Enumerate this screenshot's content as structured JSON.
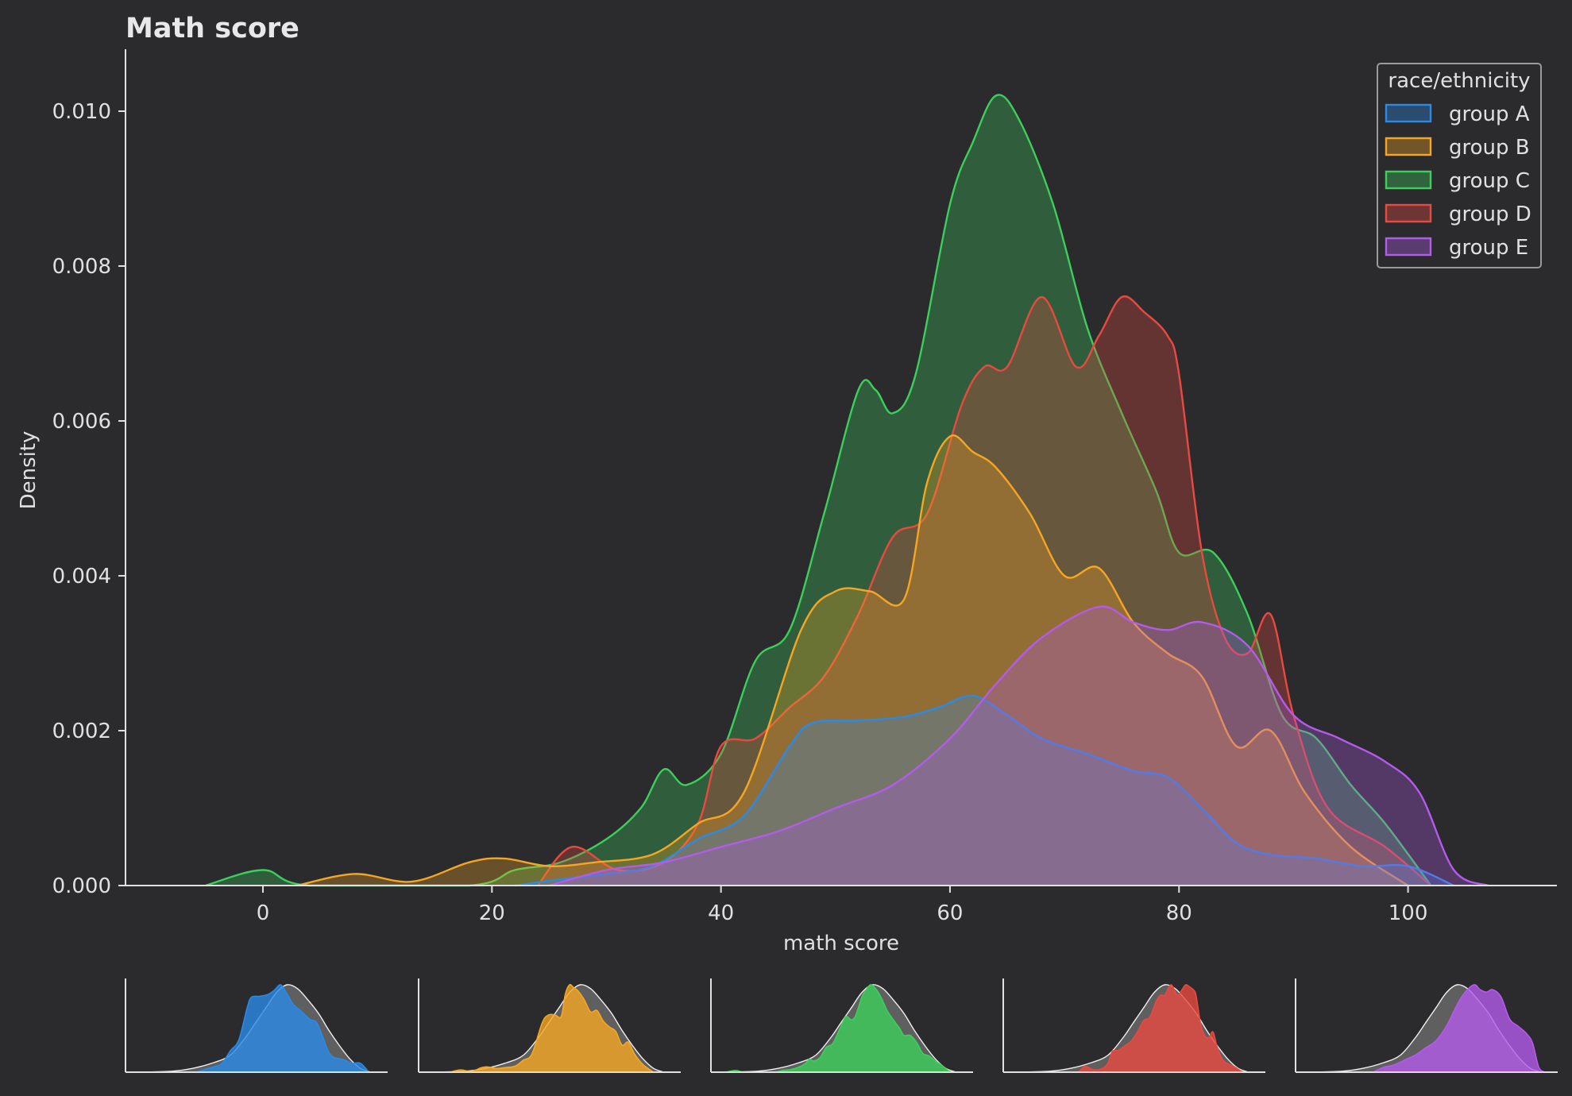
{
  "chart_data": {
    "type": "area",
    "title": "Math score",
    "xlabel": "math score",
    "ylabel": "Density",
    "xlim": [
      -12,
      113
    ],
    "ylim": [
      0,
      0.0108
    ],
    "x_ticks": [
      0,
      20,
      40,
      60,
      80,
      100
    ],
    "x_tick_labels": [
      "0",
      "20",
      "40",
      "60",
      "80",
      "100"
    ],
    "y_ticks": [
      0,
      0.002,
      0.004,
      0.006,
      0.008,
      0.01
    ],
    "y_tick_labels": [
      "0.000",
      "0.002",
      "0.004",
      "0.006",
      "0.008",
      "0.010"
    ],
    "grid": false,
    "legend": {
      "title": "race/ethnicity",
      "placement": "top-right"
    },
    "colors": {
      "background": "#2b2b2e",
      "axis": "#e0e0e0",
      "group A": "#2a8ae6",
      "group B": "#f5a623",
      "group C": "#3ccf5b",
      "group D": "#e84a40",
      "group E": "#b35bea",
      "overall": "#c8c8c8"
    },
    "series": [
      {
        "name": "group A",
        "color": "#2a8ae6",
        "x": [
          22,
          26,
          30,
          34,
          38,
          42,
          46,
          48,
          52,
          56,
          59,
          62,
          65,
          68,
          72,
          76,
          79,
          82,
          85,
          88,
          92,
          96,
          100,
          104
        ],
        "y": [
          0,
          8e-05,
          0.00015,
          0.00025,
          0.0006,
          0.0009,
          0.0018,
          0.0021,
          0.00213,
          0.00218,
          0.0023,
          0.00245,
          0.0022,
          0.0019,
          0.0017,
          0.00148,
          0.0014,
          0.001,
          0.00055,
          0.0004,
          0.00035,
          0.00025,
          0.00025,
          0
        ]
      },
      {
        "name": "group B",
        "color": "#f5a623",
        "x": [
          3,
          8,
          13,
          18,
          21,
          25,
          29,
          34,
          38,
          42,
          47,
          50,
          53,
          56,
          58,
          60,
          62,
          64,
          67,
          70,
          73,
          76,
          79,
          82,
          85,
          88,
          91,
          95,
          100
        ],
        "y": [
          0,
          0.00015,
          5e-05,
          0.0003,
          0.00035,
          0.00025,
          0.0003,
          0.0004,
          0.0008,
          0.0012,
          0.0033,
          0.0038,
          0.0038,
          0.0037,
          0.0052,
          0.0058,
          0.0056,
          0.0054,
          0.0048,
          0.004,
          0.0041,
          0.0034,
          0.003,
          0.0027,
          0.0018,
          0.002,
          0.0012,
          0.0005,
          0
        ]
      },
      {
        "name": "group C",
        "color": "#3ccf5b",
        "x": [
          -5,
          0,
          4,
          18,
          22,
          26,
          30,
          33,
          35,
          37,
          40,
          43,
          46,
          49,
          52,
          53.5,
          55,
          57,
          60,
          62,
          64,
          66,
          69,
          72,
          75,
          78,
          80,
          83,
          86,
          89,
          92,
          95,
          98,
          102
        ],
        "y": [
          0,
          0.0002,
          0,
          0,
          0.0002,
          0.0003,
          0.0006,
          0.001,
          0.0015,
          0.0013,
          0.0017,
          0.0029,
          0.0033,
          0.0048,
          0.0064,
          0.0064,
          0.0061,
          0.0066,
          0.0088,
          0.0096,
          0.0102,
          0.0099,
          0.0088,
          0.0072,
          0.0061,
          0.0051,
          0.0043,
          0.0043,
          0.0035,
          0.0022,
          0.0019,
          0.0013,
          0.0008,
          0
        ]
      },
      {
        "name": "group D",
        "color": "#e84a40",
        "x": [
          24,
          27,
          31,
          35,
          38,
          40,
          43,
          46,
          49,
          52,
          55,
          58,
          61,
          63,
          65,
          68,
          71,
          73,
          75,
          77,
          79,
          80,
          82,
          84,
          86,
          88,
          90,
          93,
          98,
          102
        ],
        "y": [
          0,
          0.0005,
          0.0002,
          0.0003,
          0.0008,
          0.0018,
          0.0019,
          0.0023,
          0.0027,
          0.0035,
          0.0045,
          0.0048,
          0.0062,
          0.0067,
          0.0067,
          0.0076,
          0.0067,
          0.0071,
          0.0076,
          0.0074,
          0.0071,
          0.0066,
          0.0043,
          0.0032,
          0.003,
          0.0035,
          0.0022,
          0.001,
          0.0005,
          0
        ]
      },
      {
        "name": "group E",
        "color": "#b35bea",
        "x": [
          25,
          30,
          35,
          40,
          45,
          50,
          55,
          60,
          64,
          68,
          73,
          76,
          79,
          82,
          86,
          90,
          94,
          98,
          101,
          104,
          107
        ],
        "y": [
          0,
          0.0002,
          0.0003,
          0.0005,
          0.0007,
          0.001,
          0.0013,
          0.0019,
          0.0026,
          0.0032,
          0.0036,
          0.0034,
          0.0033,
          0.0034,
          0.0031,
          0.0022,
          0.0019,
          0.0016,
          0.0012,
          0.0002,
          0
        ]
      }
    ],
    "small_multiples": {
      "description_level": "one small density panel per legend group, group density filled in its color over the overall density in grey",
      "overall": {
        "x": [
          -5,
          10,
          20,
          30,
          38,
          45,
          50,
          55,
          60,
          65,
          70,
          75,
          80,
          85,
          90,
          95,
          100,
          105
        ],
        "y": [
          0,
          5e-05,
          0.0002,
          0.0005,
          0.0009,
          0.0018,
          0.0026,
          0.0034,
          0.0042,
          0.0046,
          0.0044,
          0.0038,
          0.0031,
          0.0022,
          0.0014,
          0.0007,
          0.0002,
          0
        ]
      }
    }
  }
}
